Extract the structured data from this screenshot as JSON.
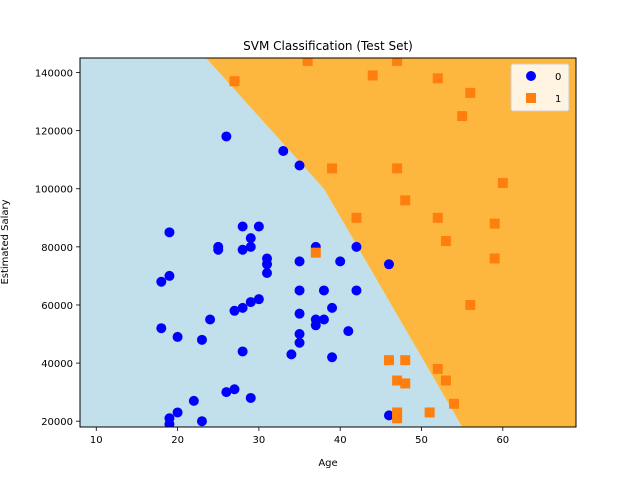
{
  "chart_data": {
    "type": "scatter",
    "title": "SVM Classification (Test Set)",
    "xlabel": "Age",
    "ylabel": "Estimated Salary",
    "xlim": [
      8,
      69
    ],
    "ylim": [
      18000,
      145000
    ],
    "xticks": [
      10,
      20,
      30,
      40,
      50,
      60
    ],
    "yticks": [
      20000,
      40000,
      60000,
      80000,
      100000,
      120000,
      140000
    ],
    "xtick_labels": [
      "10",
      "20",
      "30",
      "40",
      "50",
      "60"
    ],
    "ytick_labels": [
      "20000",
      "40000",
      "60000",
      "80000",
      "100000",
      "120000",
      "140000"
    ],
    "legend_placement": "top-right",
    "region_colors": {
      "0": "#c1e0eb",
      "1": "#feb73e"
    },
    "decision_boundary": [
      [
        23.5,
        145000
      ],
      [
        38,
        100000
      ],
      [
        55,
        18000
      ]
    ],
    "series": [
      {
        "name": "0",
        "marker": "circle",
        "color": "#0000ff",
        "points": [
          [
            26,
            118000
          ],
          [
            33,
            113000
          ],
          [
            35,
            108000
          ],
          [
            19,
            85000
          ],
          [
            28,
            87000
          ],
          [
            30,
            87000
          ],
          [
            29,
            83000
          ],
          [
            25,
            80000
          ],
          [
            25,
            79000
          ],
          [
            28,
            79000
          ],
          [
            29,
            80000
          ],
          [
            37,
            80000
          ],
          [
            42,
            80000
          ],
          [
            31,
            76000
          ],
          [
            31,
            74000
          ],
          [
            35,
            75000
          ],
          [
            40,
            75000
          ],
          [
            46,
            74000
          ],
          [
            31,
            71000
          ],
          [
            19,
            70000
          ],
          [
            18,
            68000
          ],
          [
            35,
            65000
          ],
          [
            38,
            65000
          ],
          [
            42,
            65000
          ],
          [
            30,
            62000
          ],
          [
            29,
            61000
          ],
          [
            28,
            59000
          ],
          [
            27,
            58000
          ],
          [
            39,
            59000
          ],
          [
            35,
            57000
          ],
          [
            37,
            55000
          ],
          [
            38,
            55000
          ],
          [
            24,
            55000
          ],
          [
            37,
            53000
          ],
          [
            18,
            52000
          ],
          [
            41,
            51000
          ],
          [
            35,
            50000
          ],
          [
            20,
            49000
          ],
          [
            23,
            48000
          ],
          [
            35,
            47000
          ],
          [
            28,
            44000
          ],
          [
            34,
            43000
          ],
          [
            39,
            42000
          ],
          [
            27,
            31000
          ],
          [
            26,
            30000
          ],
          [
            29,
            28000
          ],
          [
            22,
            27000
          ],
          [
            20,
            23000
          ],
          [
            46,
            22000
          ],
          [
            19,
            21000
          ],
          [
            23,
            20000
          ],
          [
            19,
            19000
          ]
        ]
      },
      {
        "name": "1",
        "marker": "square",
        "color": "#ff7f0e",
        "points": [
          [
            36,
            144000
          ],
          [
            47,
            144000
          ],
          [
            27,
            137000
          ],
          [
            44,
            139000
          ],
          [
            52,
            138000
          ],
          [
            56,
            133000
          ],
          [
            55,
            125000
          ],
          [
            39,
            107000
          ],
          [
            47,
            107000
          ],
          [
            60,
            102000
          ],
          [
            48,
            96000
          ],
          [
            42,
            90000
          ],
          [
            52,
            90000
          ],
          [
            59,
            88000
          ],
          [
            53,
            82000
          ],
          [
            37,
            78000
          ],
          [
            59,
            76000
          ],
          [
            56,
            60000
          ],
          [
            46,
            41000
          ],
          [
            48,
            41000
          ],
          [
            52,
            38000
          ],
          [
            47,
            34000
          ],
          [
            53,
            34000
          ],
          [
            48,
            33000
          ],
          [
            54,
            26000
          ],
          [
            47,
            23000
          ],
          [
            51,
            23000
          ],
          [
            47,
            21000
          ]
        ]
      }
    ]
  }
}
